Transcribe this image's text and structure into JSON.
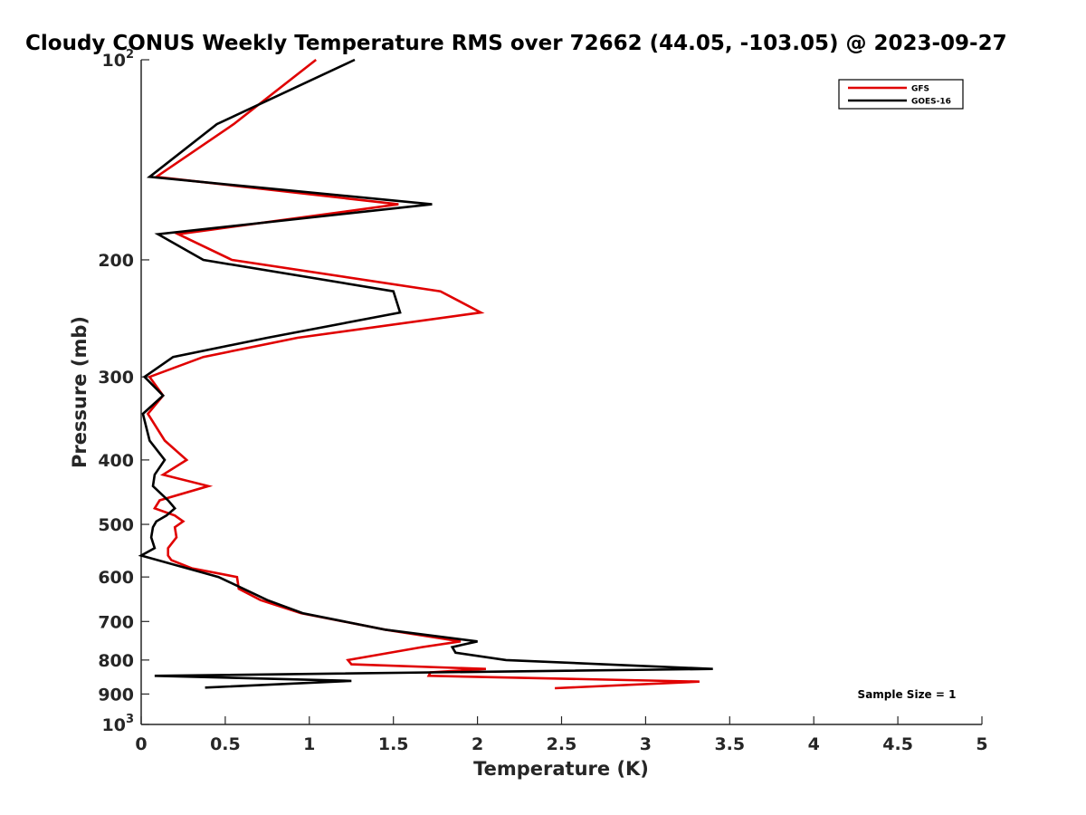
{
  "chart_data": {
    "type": "line",
    "title": "Cloudy CONUS Weekly Temperature RMS over 72662 (44.05, -103.05) @ 2023-09-27",
    "xlabel": "Temperature (K)",
    "ylabel": "Pressure (mb)",
    "xlim": [
      0,
      5
    ],
    "ylim": [
      1000,
      100
    ],
    "y_scale": "log",
    "y_reversed": true,
    "grid": false,
    "legend_position": "top-right",
    "x_ticks": [
      0,
      0.5,
      1,
      1.5,
      2,
      2.5,
      3,
      3.5,
      4,
      4.5,
      5
    ],
    "x_tick_labels": [
      "0",
      "0.5",
      "1",
      "1.5",
      "2",
      "2.5",
      "3",
      "3.5",
      "4",
      "4.5",
      "5"
    ],
    "y_ticks": [
      100,
      200,
      300,
      400,
      500,
      600,
      700,
      800,
      900,
      1000
    ],
    "y_tick_labels": [
      {
        "base": "10",
        "exp": "2"
      },
      {
        "base": "200",
        "exp": ""
      },
      {
        "base": "300",
        "exp": ""
      },
      {
        "base": "400",
        "exp": ""
      },
      {
        "base": "500",
        "exp": ""
      },
      {
        "base": "600",
        "exp": ""
      },
      {
        "base": "700",
        "exp": ""
      },
      {
        "base": "800",
        "exp": ""
      },
      {
        "base": "900",
        "exp": ""
      },
      {
        "base": "10",
        "exp": "3"
      }
    ],
    "annotation": "Sample Size = 1",
    "series": [
      {
        "name": "GFS",
        "color": "#e00000",
        "points": [
          [
            1.04,
            100
          ],
          [
            0.55,
            125
          ],
          [
            0.09,
            150
          ],
          [
            1.53,
            165
          ],
          [
            0.22,
            183
          ],
          [
            0.54,
            200
          ],
          [
            1.78,
            223
          ],
          [
            2.02,
            240
          ],
          [
            0.93,
            262
          ],
          [
            0.37,
            280
          ],
          [
            0.05,
            300
          ],
          [
            0.13,
            320
          ],
          [
            0.04,
            341
          ],
          [
            0.14,
            374
          ],
          [
            0.27,
            400
          ],
          [
            0.13,
            421
          ],
          [
            0.4,
            438
          ],
          [
            0.11,
            460
          ],
          [
            0.08,
            473
          ],
          [
            0.2,
            485
          ],
          [
            0.25,
            495
          ],
          [
            0.2,
            505
          ],
          [
            0.21,
            523
          ],
          [
            0.16,
            543
          ],
          [
            0.16,
            557
          ],
          [
            0.18,
            566
          ],
          [
            0.3,
            582
          ],
          [
            0.57,
            600
          ],
          [
            0.58,
            625
          ],
          [
            0.71,
            650
          ],
          [
            0.95,
            680
          ],
          [
            1.45,
            720
          ],
          [
            1.9,
            750
          ],
          [
            1.67,
            765
          ],
          [
            1.23,
            800
          ],
          [
            1.25,
            812
          ],
          [
            2.05,
            825
          ],
          [
            1.72,
            835
          ],
          [
            1.71,
            845
          ],
          [
            3.32,
            862
          ],
          [
            2.46,
            882
          ]
        ]
      },
      {
        "name": "GOES-16",
        "color": "#000000",
        "points": [
          [
            1.27,
            100
          ],
          [
            0.45,
            125
          ],
          [
            0.05,
            150
          ],
          [
            1.73,
            165
          ],
          [
            0.1,
            183
          ],
          [
            0.37,
            200
          ],
          [
            1.5,
            223
          ],
          [
            1.54,
            240
          ],
          [
            0.75,
            262
          ],
          [
            0.19,
            280
          ],
          [
            0.02,
            300
          ],
          [
            0.13,
            320
          ],
          [
            0.01,
            341
          ],
          [
            0.05,
            374
          ],
          [
            0.14,
            400
          ],
          [
            0.08,
            421
          ],
          [
            0.07,
            438
          ],
          [
            0.16,
            460
          ],
          [
            0.2,
            473
          ],
          [
            0.15,
            485
          ],
          [
            0.09,
            495
          ],
          [
            0.07,
            505
          ],
          [
            0.06,
            523
          ],
          [
            0.08,
            543
          ],
          [
            0.0,
            557
          ],
          [
            0.46,
            600
          ],
          [
            0.75,
            650
          ],
          [
            0.96,
            680
          ],
          [
            1.45,
            720
          ],
          [
            2.0,
            750
          ],
          [
            1.85,
            765
          ],
          [
            1.87,
            780
          ],
          [
            2.17,
            800
          ],
          [
            3.4,
            825
          ],
          [
            0.08,
            845
          ],
          [
            1.25,
            860
          ],
          [
            0.38,
            880
          ]
        ]
      }
    ]
  }
}
